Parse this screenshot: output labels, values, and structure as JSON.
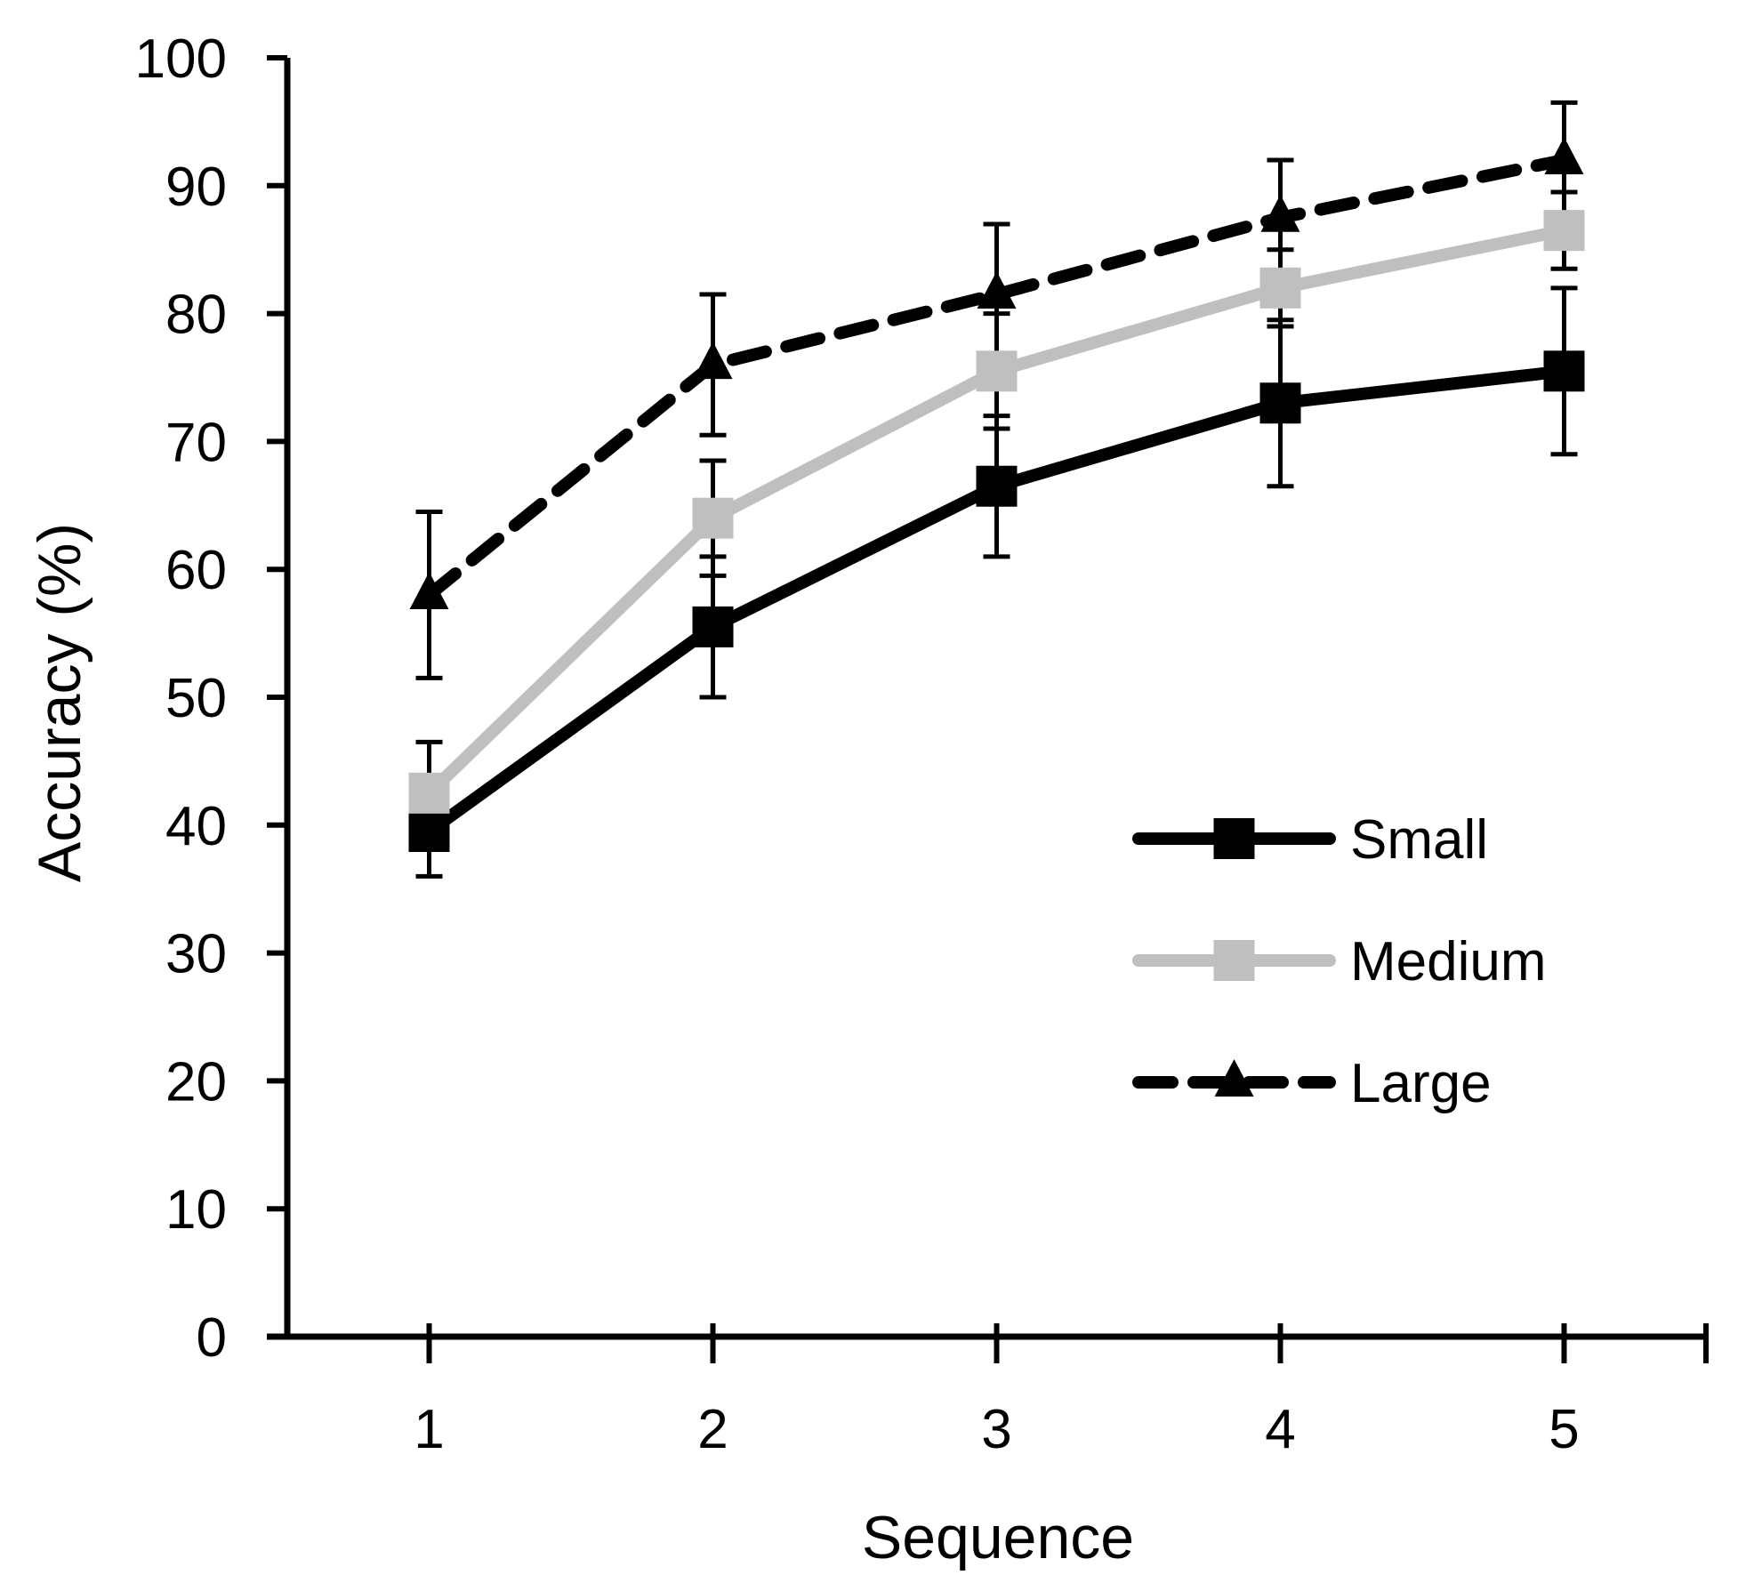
{
  "chart_data": {
    "type": "line",
    "title": "",
    "xlabel": "Sequence",
    "ylabel": "Accuracy (%)",
    "categories": [
      "1",
      "2",
      "3",
      "4",
      "5"
    ],
    "x": [
      1,
      2,
      3,
      4,
      5
    ],
    "xlim": [
      0.5,
      5.5
    ],
    "ylim": [
      0,
      100
    ],
    "yticks": [
      0,
      10,
      20,
      30,
      40,
      50,
      60,
      70,
      80,
      90,
      100
    ],
    "grid": false,
    "legend_position": "right-middle",
    "series": [
      {
        "name": "Small",
        "values": [
          39.5,
          55.5,
          66.5,
          73,
          75.5
        ],
        "errors": [
          3.5,
          5.5,
          5.5,
          6.5,
          6.5
        ],
        "color": "#000000",
        "line": "solid",
        "marker": "square"
      },
      {
        "name": "Medium",
        "values": [
          42.5,
          64,
          75.5,
          82,
          86.5
        ],
        "errors": [
          4,
          4.5,
          4.5,
          3,
          3
        ],
        "color": "#bfbfbf",
        "line": "solid",
        "marker": "square"
      },
      {
        "name": "Large",
        "values": [
          58,
          76,
          81.5,
          87.5,
          92
        ],
        "errors": [
          6.5,
          5.5,
          5.5,
          4.5,
          4.5
        ],
        "color": "#000000",
        "line": "dashed",
        "marker": "triangle"
      }
    ]
  }
}
